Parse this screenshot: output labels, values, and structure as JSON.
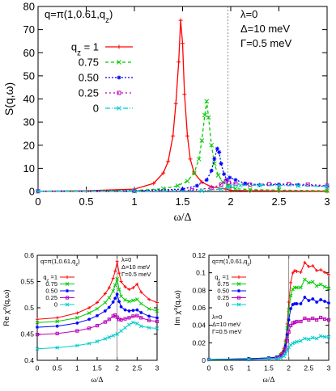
{
  "chart_data": [
    {
      "id": "main",
      "type": "line",
      "xlabel": "ω/Δ",
      "ylabel": "S(q,ω)",
      "xlim": [
        0,
        3
      ],
      "ylim": [
        0,
        80
      ],
      "xticks": [
        "0",
        "0.5",
        "1",
        "1.5",
        "2",
        "2.5",
        "3"
      ],
      "yticks": [
        "0",
        "10",
        "20",
        "30",
        "40",
        "50",
        "60",
        "70",
        "80"
      ],
      "vline": 1.97,
      "annotations": [
        "q=π(1,0.61,q_z)",
        "λ=0",
        "Δ=10 meV",
        "Γ=0.5 meV"
      ],
      "legend_title": "q_z",
      "legend_placement": "top-left",
      "series": [
        {
          "name": "1",
          "legend_label": "q_z = 1",
          "color": "#ff0000",
          "marker": "+",
          "dash": "",
          "x": [
            0,
            0.5,
            1.0,
            1.2,
            1.3,
            1.35,
            1.4,
            1.43,
            1.46,
            1.48,
            1.5,
            1.52,
            1.55,
            1.58,
            1.62,
            1.7,
            1.8,
            1.95,
            2.0,
            2.2,
            2.5,
            3.0
          ],
          "y": [
            0.1,
            0.3,
            1.0,
            3.5,
            8.0,
            13.0,
            24.0,
            38.0,
            56.0,
            74.0,
            64.0,
            42.0,
            24.0,
            14.0,
            8.0,
            4.0,
            2.0,
            1.0,
            0.5,
            0.3,
            0.2,
            0.1
          ]
        },
        {
          "name": "0.75",
          "legend_label": "0.75",
          "color": "#00cc00",
          "marker": "x",
          "dash": "4,3",
          "x": [
            0,
            1.0,
            1.3,
            1.45,
            1.55,
            1.62,
            1.67,
            1.7,
            1.73,
            1.75,
            1.77,
            1.8,
            1.83,
            1.87,
            1.92,
            1.97,
            2.05,
            2.2,
            2.5,
            3.0
          ],
          "y": [
            0.1,
            0.4,
            1.2,
            2.5,
            4.5,
            8.0,
            14.0,
            22.0,
            33.0,
            39.0,
            32.0,
            20.0,
            12.0,
            7.0,
            4.0,
            2.5,
            1.2,
            0.8,
            0.6,
            0.3
          ]
        },
        {
          "name": "0.50",
          "legend_label": "0.50",
          "color": "#0000ff",
          "marker": "*",
          "dash": "2,2",
          "x": [
            0,
            1.0,
            1.5,
            1.65,
            1.75,
            1.8,
            1.83,
            1.86,
            1.88,
            1.9,
            1.93,
            1.96,
            1.99,
            2.05,
            2.15,
            2.3,
            2.5,
            2.7,
            3.0
          ],
          "y": [
            0.1,
            0.3,
            1.0,
            2.5,
            5.0,
            9.0,
            14.0,
            18.5,
            17.0,
            12.0,
            7.5,
            5.0,
            6.0,
            5.0,
            3.5,
            2.8,
            3.0,
            2.8,
            2.2
          ]
        },
        {
          "name": "0.25",
          "legend_label": "0.25",
          "color": "#bb00bb",
          "marker": "s",
          "dash": "2,3",
          "x": [
            0,
            1.0,
            1.6,
            1.8,
            1.9,
            1.95,
            1.98,
            2.05,
            2.2,
            2.4,
            2.6,
            2.8,
            3.0
          ],
          "y": [
            0.1,
            0.2,
            0.6,
            1.5,
            3.0,
            4.5,
            3.8,
            3.2,
            3.0,
            3.2,
            3.2,
            3.0,
            2.5
          ]
        },
        {
          "name": "0",
          "legend_label": "0",
          "color": "#00cccc",
          "marker": "x",
          "dash": "6,2,1,2",
          "x": [
            0,
            1.0,
            1.7,
            1.9,
            1.97,
            2.0,
            2.1,
            2.3,
            2.5,
            2.7,
            3.0
          ],
          "y": [
            0.1,
            0.1,
            0.3,
            1.0,
            1.8,
            2.4,
            2.6,
            2.7,
            2.6,
            2.5,
            2.2
          ]
        }
      ]
    },
    {
      "id": "re",
      "type": "line",
      "xlabel": "ω/Δ",
      "ylabel": "Re χ⁰(q,ω)",
      "xlim": [
        0,
        3
      ],
      "ylim": [
        0.4,
        0.6
      ],
      "xticks": [
        "0",
        "0.5",
        "1",
        "1.5",
        "2",
        "2.5",
        "3"
      ],
      "yticks": [
        "0.4",
        "0.45",
        "0.5",
        "0.55",
        "0.6"
      ],
      "vline": 2.0,
      "annotations": [
        "q=π(1,0.61,q_z)",
        "λ=0",
        "Δ=10 meV",
        "Γ=0.5 meV"
      ],
      "legend_title": "q_z",
      "legend_placement": "top-left",
      "series": [
        {
          "name": "1",
          "legend_label": "q_z =1",
          "color": "#ff0000",
          "marker": "+",
          "dash": "",
          "x": [
            0,
            0.5,
            1.0,
            1.3,
            1.5,
            1.7,
            1.8,
            1.9,
            1.95,
            2.0,
            2.05,
            2.1,
            2.2,
            2.3,
            2.4,
            2.5,
            2.6,
            2.8,
            3.0
          ],
          "y": [
            0.478,
            0.481,
            0.49,
            0.5,
            0.51,
            0.527,
            0.538,
            0.556,
            0.57,
            0.588,
            0.566,
            0.55,
            0.54,
            0.535,
            0.538,
            0.545,
            0.53,
            0.516,
            0.51
          ]
        },
        {
          "name": "0.75",
          "legend_label": "0.75",
          "color": "#00cc00",
          "marker": "x",
          "dash": "",
          "x": [
            0,
            0.5,
            1.0,
            1.3,
            1.5,
            1.7,
            1.8,
            1.9,
            1.95,
            2.0,
            2.05,
            2.1,
            2.2,
            2.3,
            2.4,
            2.5,
            2.6,
            2.8,
            3.0
          ],
          "y": [
            0.472,
            0.474,
            0.481,
            0.49,
            0.498,
            0.51,
            0.519,
            0.532,
            0.543,
            0.555,
            0.535,
            0.522,
            0.515,
            0.512,
            0.514,
            0.516,
            0.508,
            0.498,
            0.494
          ]
        },
        {
          "name": "0.50",
          "legend_label": "0.50",
          "color": "#0000ff",
          "marker": "*",
          "dash": "",
          "x": [
            0,
            0.5,
            1.0,
            1.3,
            1.5,
            1.7,
            1.8,
            1.9,
            1.95,
            2.0,
            2.05,
            2.1,
            2.2,
            2.3,
            2.4,
            2.5,
            2.6,
            2.8,
            3.0
          ],
          "y": [
            0.463,
            0.465,
            0.471,
            0.478,
            0.485,
            0.494,
            0.501,
            0.511,
            0.518,
            0.526,
            0.512,
            0.502,
            0.496,
            0.494,
            0.495,
            0.496,
            0.491,
            0.484,
            0.481
          ]
        },
        {
          "name": "0.25",
          "legend_label": "0.25",
          "color": "#bb00bb",
          "marker": "s",
          "dash": "",
          "x": [
            0,
            0.5,
            1.0,
            1.3,
            1.5,
            1.7,
            1.8,
            1.9,
            1.95,
            2.0,
            2.05,
            2.1,
            2.2,
            2.3,
            2.4,
            2.5,
            2.6,
            2.8,
            3.0
          ],
          "y": [
            0.449,
            0.451,
            0.456,
            0.461,
            0.466,
            0.473,
            0.478,
            0.484,
            0.486,
            0.482,
            0.478,
            0.477,
            0.479,
            0.481,
            0.484,
            0.485,
            0.481,
            0.476,
            0.474
          ]
        },
        {
          "name": "0",
          "legend_label": "0",
          "color": "#00cccc",
          "marker": "x",
          "dash": "",
          "x": [
            0,
            0.5,
            1.0,
            1.3,
            1.5,
            1.7,
            1.8,
            1.9,
            2.0,
            2.1,
            2.2,
            2.3,
            2.4,
            2.5,
            2.6,
            2.8,
            3.0
          ],
          "y": [
            0.422,
            0.424,
            0.428,
            0.432,
            0.436,
            0.441,
            0.444,
            0.447,
            0.45,
            0.456,
            0.462,
            0.468,
            0.472,
            0.47,
            0.465,
            0.462,
            0.461
          ]
        }
      ]
    },
    {
      "id": "im",
      "type": "line",
      "xlabel": "ω/Δ",
      "ylabel": "Im χ⁰(q,ω)",
      "xlim": [
        0,
        3
      ],
      "ylim": [
        0,
        0.13
      ],
      "xticks": [
        "0",
        "0.5",
        "1",
        "1.5",
        "2",
        "2.5",
        "3"
      ],
      "yticks": [
        "0",
        "0.02",
        "0.04",
        "0.06",
        "0.08",
        "0.1",
        "0.12"
      ],
      "vline": 2.0,
      "annotations": [
        "q=π(1,0.61,q_z)",
        "λ=0",
        "Δ=10 meV",
        "Γ=0.5 meV"
      ],
      "legend_title": "q_z",
      "legend_placement": "top-left",
      "series": [
        {
          "name": "1",
          "legend_label": "q_z =1",
          "color": "#ff0000",
          "marker": "+",
          "dash": "",
          "x": [
            0,
            1.0,
            1.5,
            1.7,
            1.8,
            1.88,
            1.92,
            1.96,
            2.0,
            2.05,
            2.1,
            2.15,
            2.2,
            2.3,
            2.4,
            2.5,
            2.6,
            2.7,
            2.8,
            2.9,
            3.0
          ],
          "y": [
            0.001,
            0.002,
            0.003,
            0.004,
            0.008,
            0.015,
            0.025,
            0.045,
            0.072,
            0.096,
            0.108,
            0.111,
            0.11,
            0.109,
            0.121,
            0.116,
            0.117,
            0.111,
            0.112,
            0.109,
            0.106
          ]
        },
        {
          "name": "0.75",
          "legend_label": "0.75",
          "color": "#00cc00",
          "marker": "x",
          "dash": "",
          "x": [
            0,
            1.0,
            1.5,
            1.7,
            1.8,
            1.88,
            1.92,
            1.96,
            2.0,
            2.05,
            2.1,
            2.15,
            2.2,
            2.3,
            2.4,
            2.5,
            2.6,
            2.7,
            2.8,
            2.9,
            3.0
          ],
          "y": [
            0.001,
            0.002,
            0.003,
            0.004,
            0.007,
            0.013,
            0.022,
            0.04,
            0.062,
            0.08,
            0.088,
            0.09,
            0.09,
            0.09,
            0.1,
            0.096,
            0.097,
            0.092,
            0.094,
            0.091,
            0.089
          ]
        },
        {
          "name": "0.50",
          "legend_label": "0.50",
          "color": "#0000ff",
          "marker": "*",
          "dash": "",
          "x": [
            0,
            1.0,
            1.5,
            1.7,
            1.8,
            1.88,
            1.92,
            1.96,
            2.0,
            2.05,
            2.1,
            2.15,
            2.2,
            2.3,
            2.4,
            2.5,
            2.6,
            2.7,
            2.8,
            2.9,
            3.0
          ],
          "y": [
            0.001,
            0.002,
            0.003,
            0.004,
            0.006,
            0.011,
            0.018,
            0.032,
            0.05,
            0.064,
            0.069,
            0.07,
            0.07,
            0.07,
            0.078,
            0.074,
            0.076,
            0.072,
            0.075,
            0.073,
            0.071
          ]
        },
        {
          "name": "0.25",
          "legend_label": "0.25",
          "color": "#bb00bb",
          "marker": "s",
          "dash": "",
          "x": [
            0,
            1.0,
            1.5,
            1.7,
            1.8,
            1.88,
            1.92,
            1.96,
            2.0,
            2.05,
            2.1,
            2.15,
            2.2,
            2.3,
            2.4,
            2.5,
            2.6,
            2.7,
            2.8,
            2.9,
            3.0
          ],
          "y": [
            0.001,
            0.001,
            0.002,
            0.003,
            0.005,
            0.009,
            0.014,
            0.024,
            0.035,
            0.043,
            0.046,
            0.047,
            0.048,
            0.048,
            0.052,
            0.05,
            0.052,
            0.05,
            0.053,
            0.051,
            0.05
          ]
        },
        {
          "name": "0",
          "legend_label": "0",
          "color": "#00cccc",
          "marker": "x",
          "dash": "",
          "x": [
            0,
            1.0,
            1.5,
            1.7,
            1.8,
            1.88,
            1.92,
            1.96,
            2.0,
            2.05,
            2.1,
            2.15,
            2.2,
            2.3,
            2.4,
            2.5,
            2.6,
            2.7,
            2.8,
            2.9,
            3.0
          ],
          "y": [
            0.001,
            0.001,
            0.002,
            0.002,
            0.003,
            0.005,
            0.008,
            0.012,
            0.016,
            0.019,
            0.021,
            0.022,
            0.023,
            0.024,
            0.027,
            0.026,
            0.028,
            0.027,
            0.03,
            0.029,
            0.029
          ]
        }
      ]
    }
  ]
}
